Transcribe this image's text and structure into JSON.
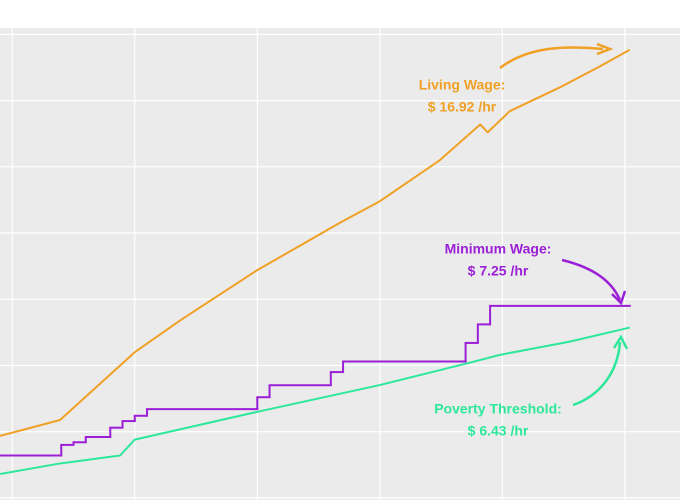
{
  "chart_data": {
    "type": "line",
    "xlim": [
      1969.0,
      2024.5
    ],
    "ylim": [
      -0.08,
      17.74
    ],
    "xticks": [
      1970,
      1980,
      1990,
      2000,
      2010,
      2020
    ],
    "yticks": [
      0,
      2.5,
      5,
      7.5,
      10,
      12.5,
      15,
      17.5
    ],
    "grid": true,
    "series": [
      {
        "name": "Living Wage",
        "color": "#f0a024",
        "step": false,
        "x": [
          1969.0,
          1973.9,
          1980.0,
          1983.7,
          1990.0,
          1996.8,
          2000.0,
          2004.9,
          2008.2,
          2008.8,
          2010.6,
          2014.7,
          2018.0,
          2020.4
        ],
        "values": [
          2.34,
          2.94,
          5.5,
          6.7,
          8.6,
          10.4,
          11.2,
          12.75,
          14.1,
          13.8,
          14.6,
          15.5,
          16.3,
          16.92
        ]
      },
      {
        "name": "Minimum Wage",
        "color": "#9b1fd6",
        "step": true,
        "x": [
          1969.0,
          1974.0,
          1975.0,
          1976.0,
          1978.0,
          1979.0,
          1980.0,
          1981.0,
          1990.0,
          1991.0,
          1996.0,
          1997.0,
          2007.0,
          2008.0,
          2009.0,
          2020.4
        ],
        "values": [
          1.6,
          2.0,
          2.1,
          2.3,
          2.65,
          2.9,
          3.1,
          3.35,
          3.8,
          4.25,
          4.75,
          5.15,
          5.85,
          6.55,
          7.25,
          7.25
        ]
      },
      {
        "name": "Poverty Threshold",
        "color": "#2de89a",
        "step": false,
        "x": [
          1969.0,
          1973.9,
          1978.8,
          1980.0,
          1990.0,
          2000.0,
          2007.3,
          2009.8,
          2015.5,
          2020.4
        ],
        "values": [
          0.9,
          1.3,
          1.6,
          2.2,
          3.25,
          4.26,
          5.1,
          5.4,
          5.9,
          6.43
        ]
      }
    ],
    "annotations": [
      {
        "series": 0,
        "lines": [
          "Living Wage:",
          "$ 16.92 /hr"
        ]
      },
      {
        "series": 1,
        "lines": [
          "Minimum Wage:",
          "$ 7.25 /hr"
        ]
      },
      {
        "series": 2,
        "lines": [
          "Poverty Threshold:",
          "$ 6.43 /hr"
        ]
      }
    ]
  }
}
